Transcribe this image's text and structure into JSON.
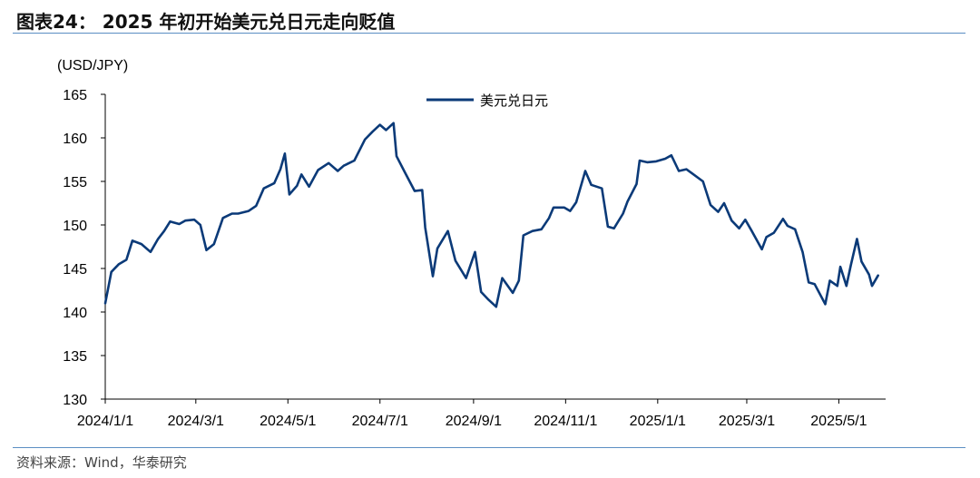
{
  "header": {
    "title": "图表24： 2025 年初开始美元兑日元走向贬值"
  },
  "footer": {
    "source": "资料来源：Wind，华泰研究"
  },
  "chart_data": {
    "type": "line",
    "title": "",
    "ylabel": "(USD/JPY)",
    "xlabel": "",
    "ylim": [
      130,
      165
    ],
    "yticks": [
      "130",
      "135",
      "140",
      "145",
      "150",
      "155",
      "160",
      "165"
    ],
    "xticks": [
      "2024/1/1",
      "2024/3/1",
      "2024/5/1",
      "2024/7/1",
      "2024/9/1",
      "2024/11/1",
      "2025/1/1",
      "2025/3/1",
      "2025/5/1"
    ],
    "legend": "top-center",
    "grid": false,
    "series": [
      {
        "name": "美元兑日元",
        "color": "#0b3a78",
        "points": [
          [
            "2024-01-01",
            141.0
          ],
          [
            "2024-01-05",
            144.6
          ],
          [
            "2024-01-10",
            145.5
          ],
          [
            "2024-01-15",
            146.0
          ],
          [
            "2024-01-19",
            148.2
          ],
          [
            "2024-01-25",
            147.8
          ],
          [
            "2024-01-31",
            146.9
          ],
          [
            "2024-02-05",
            148.4
          ],
          [
            "2024-02-09",
            149.3
          ],
          [
            "2024-02-13",
            150.4
          ],
          [
            "2024-02-19",
            150.1
          ],
          [
            "2024-02-23",
            150.5
          ],
          [
            "2024-02-29",
            150.6
          ],
          [
            "2024-03-04",
            150.0
          ],
          [
            "2024-03-08",
            147.1
          ],
          [
            "2024-03-13",
            147.8
          ],
          [
            "2024-03-19",
            150.8
          ],
          [
            "2024-03-25",
            151.3
          ],
          [
            "2024-03-29",
            151.3
          ],
          [
            "2024-04-05",
            151.6
          ],
          [
            "2024-04-10",
            152.2
          ],
          [
            "2024-04-15",
            154.2
          ],
          [
            "2024-04-22",
            154.8
          ],
          [
            "2024-04-26",
            156.4
          ],
          [
            "2024-04-29",
            158.2
          ],
          [
            "2024-05-02",
            153.5
          ],
          [
            "2024-05-07",
            154.5
          ],
          [
            "2024-05-10",
            155.8
          ],
          [
            "2024-05-15",
            154.4
          ],
          [
            "2024-05-21",
            156.3
          ],
          [
            "2024-05-28",
            157.1
          ],
          [
            "2024-06-03",
            156.2
          ],
          [
            "2024-06-07",
            156.8
          ],
          [
            "2024-06-14",
            157.4
          ],
          [
            "2024-06-21",
            159.8
          ],
          [
            "2024-06-26",
            160.7
          ],
          [
            "2024-07-01",
            161.5
          ],
          [
            "2024-07-05",
            160.9
          ],
          [
            "2024-07-10",
            161.7
          ],
          [
            "2024-07-12",
            157.9
          ],
          [
            "2024-07-17",
            156.2
          ],
          [
            "2024-07-24",
            153.9
          ],
          [
            "2024-07-29",
            154.0
          ],
          [
            "2024-07-31",
            149.7
          ],
          [
            "2024-08-05",
            144.1
          ],
          [
            "2024-08-08",
            147.3
          ],
          [
            "2024-08-15",
            149.3
          ],
          [
            "2024-08-20",
            145.9
          ],
          [
            "2024-08-27",
            143.9
          ],
          [
            "2024-09-02",
            146.9
          ],
          [
            "2024-09-06",
            142.3
          ],
          [
            "2024-09-11",
            141.4
          ],
          [
            "2024-09-16",
            140.6
          ],
          [
            "2024-09-20",
            143.9
          ],
          [
            "2024-09-27",
            142.2
          ],
          [
            "2024-10-01",
            143.6
          ],
          [
            "2024-10-04",
            148.8
          ],
          [
            "2024-10-10",
            149.3
          ],
          [
            "2024-10-16",
            149.5
          ],
          [
            "2024-10-21",
            150.8
          ],
          [
            "2024-10-24",
            152.0
          ],
          [
            "2024-10-31",
            152.0
          ],
          [
            "2024-11-04",
            151.6
          ],
          [
            "2024-11-08",
            152.6
          ],
          [
            "2024-11-14",
            156.2
          ],
          [
            "2024-11-18",
            154.6
          ],
          [
            "2024-11-25",
            154.2
          ],
          [
            "2024-11-29",
            149.8
          ],
          [
            "2024-12-03",
            149.6
          ],
          [
            "2024-12-09",
            151.3
          ],
          [
            "2024-12-12",
            152.7
          ],
          [
            "2024-12-18",
            154.7
          ],
          [
            "2024-12-20",
            157.4
          ],
          [
            "2024-12-25",
            157.2
          ],
          [
            "2024-12-31",
            157.3
          ],
          [
            "2025-01-06",
            157.6
          ],
          [
            "2025-01-10",
            158.0
          ],
          [
            "2025-01-15",
            156.2
          ],
          [
            "2025-01-20",
            156.4
          ],
          [
            "2025-01-24",
            155.9
          ],
          [
            "2025-01-31",
            155.0
          ],
          [
            "2025-02-05",
            152.3
          ],
          [
            "2025-02-10",
            151.5
          ],
          [
            "2025-02-14",
            152.5
          ],
          [
            "2025-02-19",
            150.5
          ],
          [
            "2025-02-24",
            149.6
          ],
          [
            "2025-02-28",
            150.6
          ],
          [
            "2025-03-04",
            149.4
          ],
          [
            "2025-03-11",
            147.2
          ],
          [
            "2025-03-14",
            148.6
          ],
          [
            "2025-03-19",
            149.1
          ],
          [
            "2025-03-25",
            150.7
          ],
          [
            "2025-03-28",
            149.9
          ],
          [
            "2025-04-02",
            149.5
          ],
          [
            "2025-04-07",
            146.9
          ],
          [
            "2025-04-11",
            143.4
          ],
          [
            "2025-04-15",
            143.2
          ],
          [
            "2025-04-22",
            140.9
          ],
          [
            "2025-04-25",
            143.6
          ],
          [
            "2025-04-30",
            143.0
          ],
          [
            "2025-05-02",
            145.2
          ],
          [
            "2025-05-06",
            143.0
          ],
          [
            "2025-05-09",
            145.4
          ],
          [
            "2025-05-13",
            148.4
          ],
          [
            "2025-05-16",
            145.8
          ],
          [
            "2025-05-21",
            144.3
          ],
          [
            "2025-05-23",
            143.0
          ],
          [
            "2025-05-27",
            144.2
          ]
        ]
      }
    ]
  }
}
